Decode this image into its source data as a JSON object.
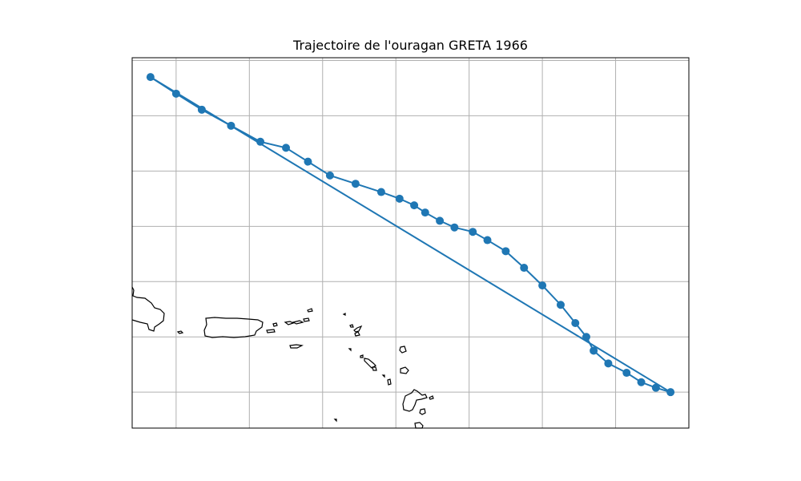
{
  "title": "Trajectoire de l'ouragan GRETA 1966",
  "colors": {
    "track": "#1f77b4",
    "coast": "#000000",
    "grid": "#b0b0b0",
    "frame": "#000000",
    "background": "#ffffff"
  },
  "map": {
    "lon_range": [
      -67.6,
      -52.4
    ],
    "lat_range": [
      15.35,
      22.05
    ],
    "gridlines": true,
    "grid_lon": [
      -66.4,
      -64.4,
      -62.4,
      -60.4,
      -58.4,
      -56.4,
      -54.4
    ],
    "grid_lat": [
      16.0,
      17.0,
      18.0,
      19.0,
      20.0,
      21.0,
      22.0
    ]
  },
  "chart_data": {
    "type": "scatter",
    "series": [
      {
        "lon": [
          -52.9,
          -53.3,
          -53.7,
          -54.1,
          -54.6,
          -55.0,
          -55.2,
          -55.5,
          -55.9,
          -56.4,
          -56.9,
          -57.4,
          -57.9,
          -58.3,
          -58.8,
          -59.2,
          -59.6,
          -59.9,
          -60.3,
          -60.8,
          -61.5,
          -62.2,
          -62.8,
          -63.4,
          -64.1,
          -64.9,
          -65.7,
          -66.4,
          -67.1
        ],
        "lat": [
          16.0,
          16.08,
          16.18,
          16.35,
          16.52,
          16.75,
          17.0,
          17.25,
          17.58,
          17.93,
          18.25,
          18.55,
          18.75,
          18.9,
          18.98,
          19.1,
          19.25,
          19.38,
          19.5,
          19.62,
          19.77,
          19.92,
          20.17,
          20.42,
          20.53,
          20.82,
          21.11,
          21.4,
          21.7
        ]
      }
    ]
  }
}
